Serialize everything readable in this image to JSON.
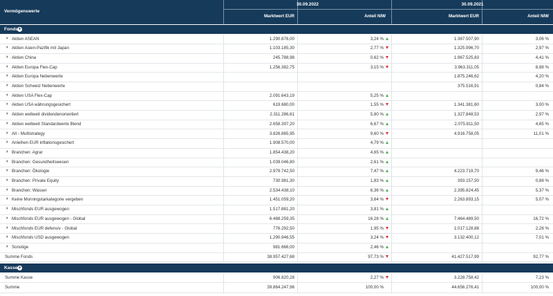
{
  "header": {
    "col_label": "Vermögenswerte",
    "date1": "30.09.2022",
    "date2": "30.09.2021",
    "mw_label": "Marktwert EUR",
    "anteil_label": "Anteil NIW"
  },
  "sections": {
    "fonds": "Fonds",
    "kasse": "Kasse"
  },
  "colors": {
    "header_bg": "#163a5a",
    "up": "#4caf50",
    "down": "#d9313a"
  },
  "rows": [
    {
      "name": "Aktien ASEAN",
      "mw22": "1.290.876,00",
      "a22": "3,24 %",
      "t": "up",
      "mw21": "1.367.507,90",
      "a21": "3,06 %"
    },
    {
      "name": "Aktien Asien-Pazifik mit Japan",
      "mw22": "1.103.185,30",
      "a22": "2,77 %",
      "t": "down",
      "mw21": "1.325.996,70",
      "a21": "2,97 %"
    },
    {
      "name": "Aktien China",
      "mw22": "245.788,98",
      "a22": "0,62 %",
      "t": "down",
      "mw21": "1.967.525,83",
      "a21": "4,41 %"
    },
    {
      "name": "Aktien Europa Flex-Cap",
      "mw22": "1.256.382,75",
      "a22": "3,15 %",
      "t": "down",
      "mw21": "3.963.311,05",
      "a21": "8,88 %"
    },
    {
      "name": "Aktien Europa Nebenwerte",
      "mw22": "",
      "a22": "",
      "t": "",
      "mw21": "1.875.246,62",
      "a21": "4,20 %"
    },
    {
      "name": "Aktien Schweiz Nebenwerte",
      "mw22": "",
      "a22": "",
      "t": "",
      "mw21": "375.516,91",
      "a21": "0,84 %"
    },
    {
      "name": "Aktien USA Flex-Cap",
      "mw22": "2.091.643,19",
      "a22": "5,25 %",
      "t": "up",
      "mw21": "",
      "a21": ""
    },
    {
      "name": "Aktien USA währungsgesichert",
      "mw22": "619.680,00",
      "a22": "1,55 %",
      "t": "down",
      "mw21": "1.341.381,60",
      "a21": "3,00 %"
    },
    {
      "name": "Aktien weltweit dividendenorientiert",
      "mw22": "2.311.286,61",
      "a22": "5,80 %",
      "t": "up",
      "mw21": "1.327.848,53",
      "a21": "2,97 %"
    },
    {
      "name": "Aktien weltweit Standardwerte Blend",
      "mw22": "2.658.397,20",
      "a22": "6,67 %",
      "t": "up",
      "mw21": "2.075.811,50",
      "a21": "4,65 %"
    },
    {
      "name": "Alt - Multistrategy",
      "mw22": "3.826.865,95",
      "a22": "9,60 %",
      "t": "down",
      "mw21": "4.916.758,05",
      "a21": "11,01 %"
    },
    {
      "name": "Anleihen EUR inflationsgesichert",
      "mw22": "1.908.570,00",
      "a22": "4,79 %",
      "t": "up",
      "mw21": "",
      "a21": ""
    },
    {
      "name": "Branchen: Agrar",
      "mw22": "1.854.438,20",
      "a22": "4,65 %",
      "t": "up",
      "mw21": "",
      "a21": ""
    },
    {
      "name": "Branchen: Gesundheitswesen",
      "mw22": "1.039.046,80",
      "a22": "2,61 %",
      "t": "up",
      "mw21": "",
      "a21": ""
    },
    {
      "name": "Branchen: Ökologie",
      "mw22": "2.979.742,50",
      "a22": "7,47 %",
      "t": "up",
      "mw21": "4.223.719,70",
      "a21": "9,46 %"
    },
    {
      "name": "Branchen: Private Equity",
      "mw22": "730.981,30",
      "a22": "1,83 %",
      "t": "up",
      "mw21": "393.157,50",
      "a21": "0,88 %"
    },
    {
      "name": "Branchen: Wasser",
      "mw22": "2.534.438,10",
      "a22": "6,36 %",
      "t": "up",
      "mw21": "2.395.824,45",
      "a21": "5,37 %"
    },
    {
      "name": "Keine Morningstarkategorie vergeben",
      "mw22": "1.451.059,20",
      "a22": "3,64 %",
      "t": "down",
      "mw21": "2.263.893,15",
      "a21": "5,07 %"
    },
    {
      "name": "Mischfonds EUR ausgewogen",
      "mw22": "1.517.881,20",
      "a22": "3,81 %",
      "t": "up",
      "mw21": "",
      "a21": ""
    },
    {
      "name": "Mischfonds EUR ausgewogen - Global",
      "mw22": "6.488.259,35",
      "a22": "16,28 %",
      "t": "up",
      "mw21": "7.464.489,50",
      "a21": "16,72 %"
    },
    {
      "name": "Mischfonds EUR defensiv - Global",
      "mw22": "776.292,50",
      "a22": "1,95 %",
      "t": "down",
      "mw21": "1.017.128,88",
      "a21": "2,28 %"
    },
    {
      "name": "Mischfonds USD ausgewogen",
      "mw22": "1.290.946,55",
      "a22": "3,24 %",
      "t": "down",
      "mw21": "3.132.400,12",
      "a21": "7,01 %"
    },
    {
      "name": "Sonstige",
      "mw22": "981.666,00",
      "a22": "2,46 %",
      "t": "up",
      "mw21": "",
      "a21": ""
    }
  ],
  "summe_fonds": {
    "label": "Summe Fonds",
    "mw22": "38.957.427,68",
    "a22": "97,73 %",
    "t": "down",
    "mw21": "41.427.517,99",
    "a21": "92,77 %"
  },
  "summe_kasse": {
    "label": "Summe Kasse",
    "mw22": "906.820,28",
    "a22": "2,27 %",
    "t": "down",
    "mw21": "3.228.758,42",
    "a21": "7,23 %"
  },
  "summe": {
    "label": "Summe",
    "mw22": "39.864.247,96",
    "a22": "100,00 %",
    "t": "",
    "mw21": "44.656.276,41",
    "a21": "100,00 %"
  }
}
